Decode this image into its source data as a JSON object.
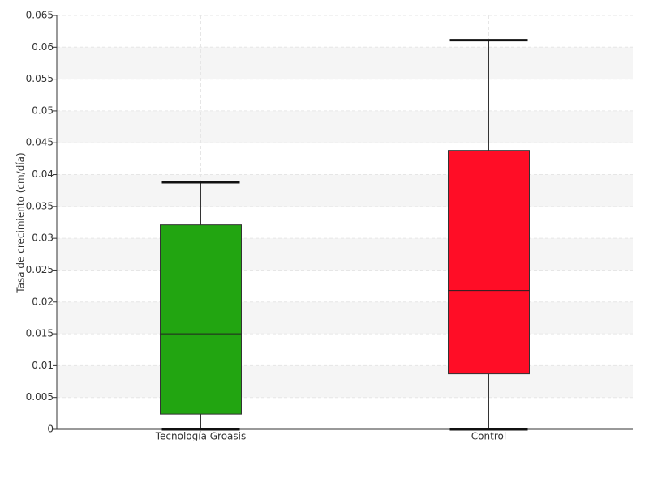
{
  "chart_data": {
    "type": "box",
    "y_label": "Tasa de crecimiento (cm/día)",
    "categories": [
      "Tecnología Groasis",
      "Control"
    ],
    "boxes": [
      {
        "min": 0,
        "q1": 0.0024,
        "median": 0.015,
        "q3": 0.0321,
        "max": 0.0388,
        "color": "#22a511"
      },
      {
        "min": 0,
        "q1": 0.0087,
        "median": 0.0218,
        "q3": 0.0438,
        "max": 0.0611,
        "color": "#ff0d26"
      }
    ],
    "ylim": [
      0,
      0.065
    ],
    "yticks": [
      0,
      0.005,
      0.01,
      0.015,
      0.02,
      0.025,
      0.03,
      0.035,
      0.04,
      0.045,
      0.05,
      0.055,
      0.06,
      0.065
    ],
    "grid": true
  }
}
